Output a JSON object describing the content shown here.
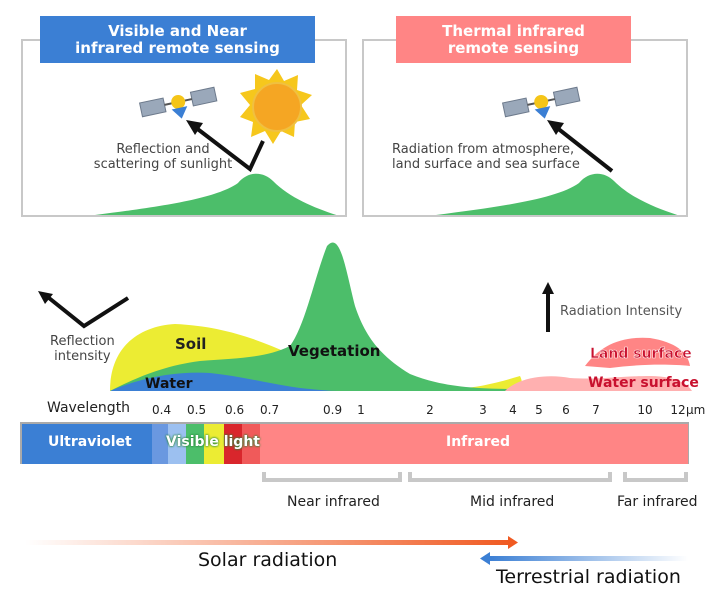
{
  "panels": {
    "visible": {
      "title": "Visible and Near\ninfrared remote sensing",
      "caption": "Reflection and\nscattering of sunlight"
    },
    "thermal": {
      "title": "Thermal infrared\nremote sensing",
      "caption": "Radiation from atmosphere,\nland surface and sea surface"
    }
  },
  "chart": {
    "reflection_label": "Reflection\nintensity",
    "radiation_label": "Radiation Intensity",
    "curves": {
      "soil": "Soil",
      "water": "Water",
      "vegetation": "Vegetation",
      "land_surface": "Land surface",
      "water_surface": "Water surface"
    },
    "wavelength_label": "Wavelength",
    "ticks": [
      "0.4",
      "0.5",
      "0.6",
      "0.7",
      "0.9",
      "1",
      "2",
      "3",
      "4",
      "5",
      "6",
      "7",
      "10",
      "12"
    ],
    "unit": "μm"
  },
  "band": {
    "ultraviolet": "Ultraviolet",
    "visible": "Visible light",
    "infrared": "Infrared"
  },
  "ranges": {
    "near": "Near infrared",
    "mid": "Mid infrared",
    "far": "Far infrared"
  },
  "radiation": {
    "solar": "Solar radiation",
    "terrestrial": "Terrestrial radiation"
  },
  "colors": {
    "blue": "#3b7fd4",
    "pink": "#ff8585",
    "vegetation": "#4cbe6a",
    "soil": "#ecec33",
    "orange": "#f05a22"
  }
}
